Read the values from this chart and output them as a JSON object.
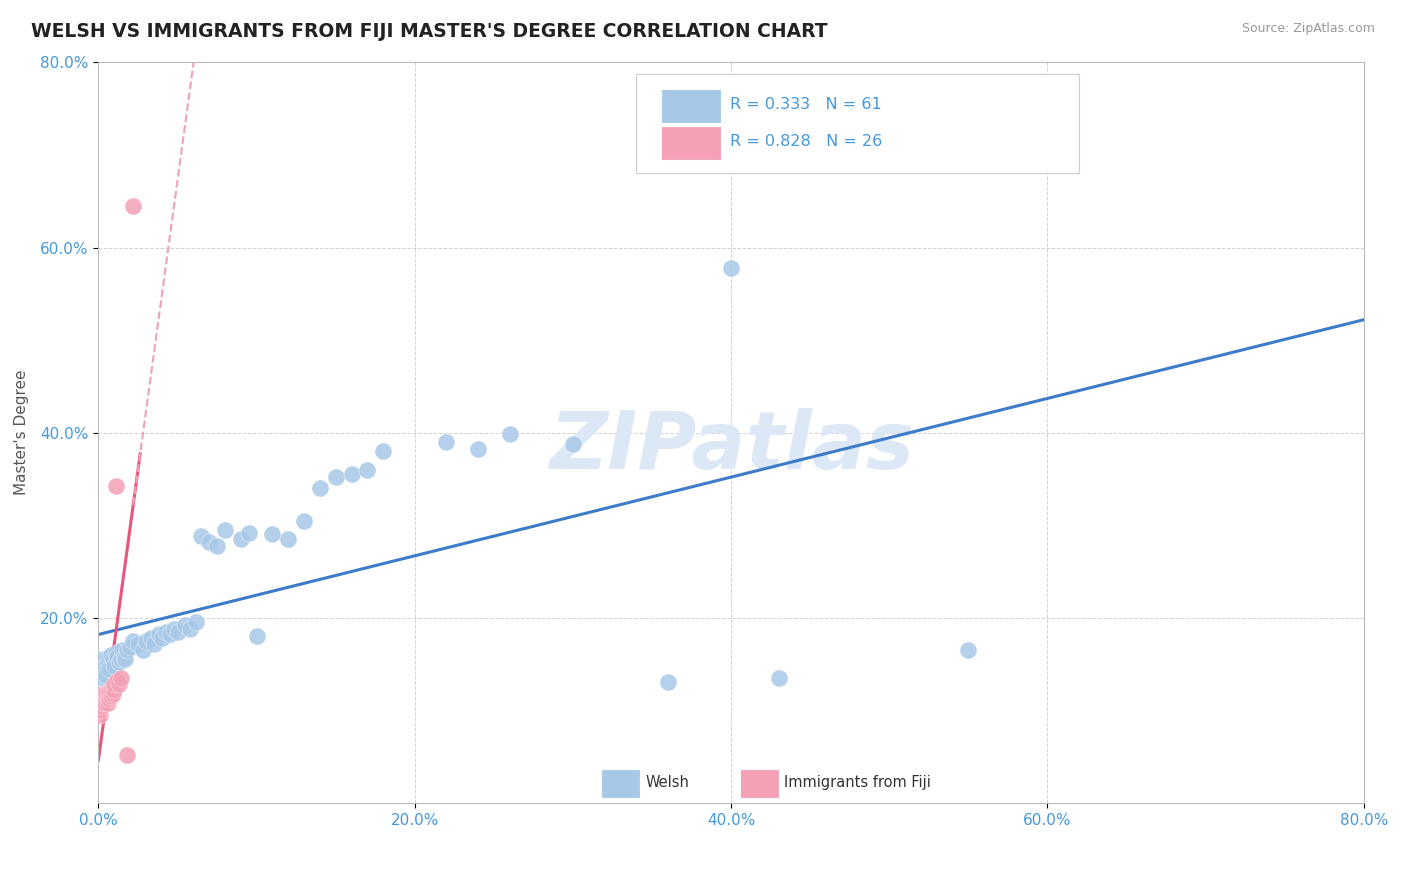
{
  "title": "WELSH VS IMMIGRANTS FROM FIJI MASTER'S DEGREE CORRELATION CHART",
  "source": "Source: ZipAtlas.com",
  "ylabel": "Master's Degree",
  "xlim": [
    0,
    0.8
  ],
  "ylim": [
    0,
    0.8
  ],
  "xticks": [
    0.0,
    0.2,
    0.4,
    0.6,
    0.8
  ],
  "yticks": [
    0.2,
    0.4,
    0.6,
    0.8
  ],
  "welsh_color": "#A8C8E8",
  "fiji_color": "#F4A0B5",
  "welsh_line_color": "#3B7BC8",
  "fiji_line_color": "#E8547A",
  "fiji_dash_color": "#F0A0B8",
  "welsh_R": 0.333,
  "welsh_N": 61,
  "fiji_R": 0.828,
  "fiji_N": 26,
  "background_color": "#ffffff",
  "grid_color": "#cccccc",
  "tick_color": "#4499DD",
  "watermark_color": "#dce8f5",
  "welsh_x": [
    0.002,
    0.003,
    0.004,
    0.005,
    0.005,
    0.006,
    0.007,
    0.007,
    0.008,
    0.009,
    0.01,
    0.011,
    0.012,
    0.013,
    0.014,
    0.015,
    0.016,
    0.017,
    0.018,
    0.019,
    0.02,
    0.021,
    0.022,
    0.024,
    0.025,
    0.026,
    0.028,
    0.03,
    0.032,
    0.035,
    0.038,
    0.04,
    0.043,
    0.045,
    0.048,
    0.052,
    0.055,
    0.058,
    0.062,
    0.065,
    0.07,
    0.075,
    0.08,
    0.09,
    0.095,
    0.1,
    0.11,
    0.12,
    0.13,
    0.15,
    0.16,
    0.17,
    0.18,
    0.22,
    0.24,
    0.26,
    0.3,
    0.38,
    0.4,
    0.43,
    0.55
  ],
  "welsh_y": [
    0.14,
    0.145,
    0.15,
    0.135,
    0.155,
    0.148,
    0.142,
    0.138,
    0.152,
    0.158,
    0.145,
    0.16,
    0.155,
    0.148,
    0.162,
    0.158,
    0.152,
    0.155,
    0.165,
    0.158,
    0.155,
    0.165,
    0.168,
    0.175,
    0.172,
    0.165,
    0.175,
    0.178,
    0.172,
    0.182,
    0.178,
    0.185,
    0.182,
    0.188,
    0.185,
    0.192,
    0.188,
    0.195,
    0.192,
    0.285,
    0.278,
    0.295,
    0.288,
    0.285,
    0.295,
    0.18,
    0.29,
    0.28,
    0.302,
    0.34,
    0.35,
    0.355,
    0.378,
    0.388,
    0.38,
    0.395,
    0.385,
    0.13,
    0.575,
    0.135,
    0.165
  ],
  "fiji_x": [
    0.001,
    0.002,
    0.003,
    0.004,
    0.005,
    0.005,
    0.006,
    0.007,
    0.008,
    0.009,
    0.01,
    0.011,
    0.012,
    0.013,
    0.014,
    0.015,
    0.016,
    0.017,
    0.018,
    0.019,
    0.02,
    0.022,
    0.025,
    0.028,
    0.032,
    0.048
  ],
  "fiji_y": [
    0.095,
    0.1,
    0.105,
    0.108,
    0.112,
    0.118,
    0.108,
    0.115,
    0.112,
    0.118,
    0.122,
    0.115,
    0.12,
    0.125,
    0.118,
    0.125,
    0.13,
    0.135,
    0.135,
    0.148,
    0.145,
    0.335,
    0.052,
    0.062,
    0.072,
    0.648
  ]
}
